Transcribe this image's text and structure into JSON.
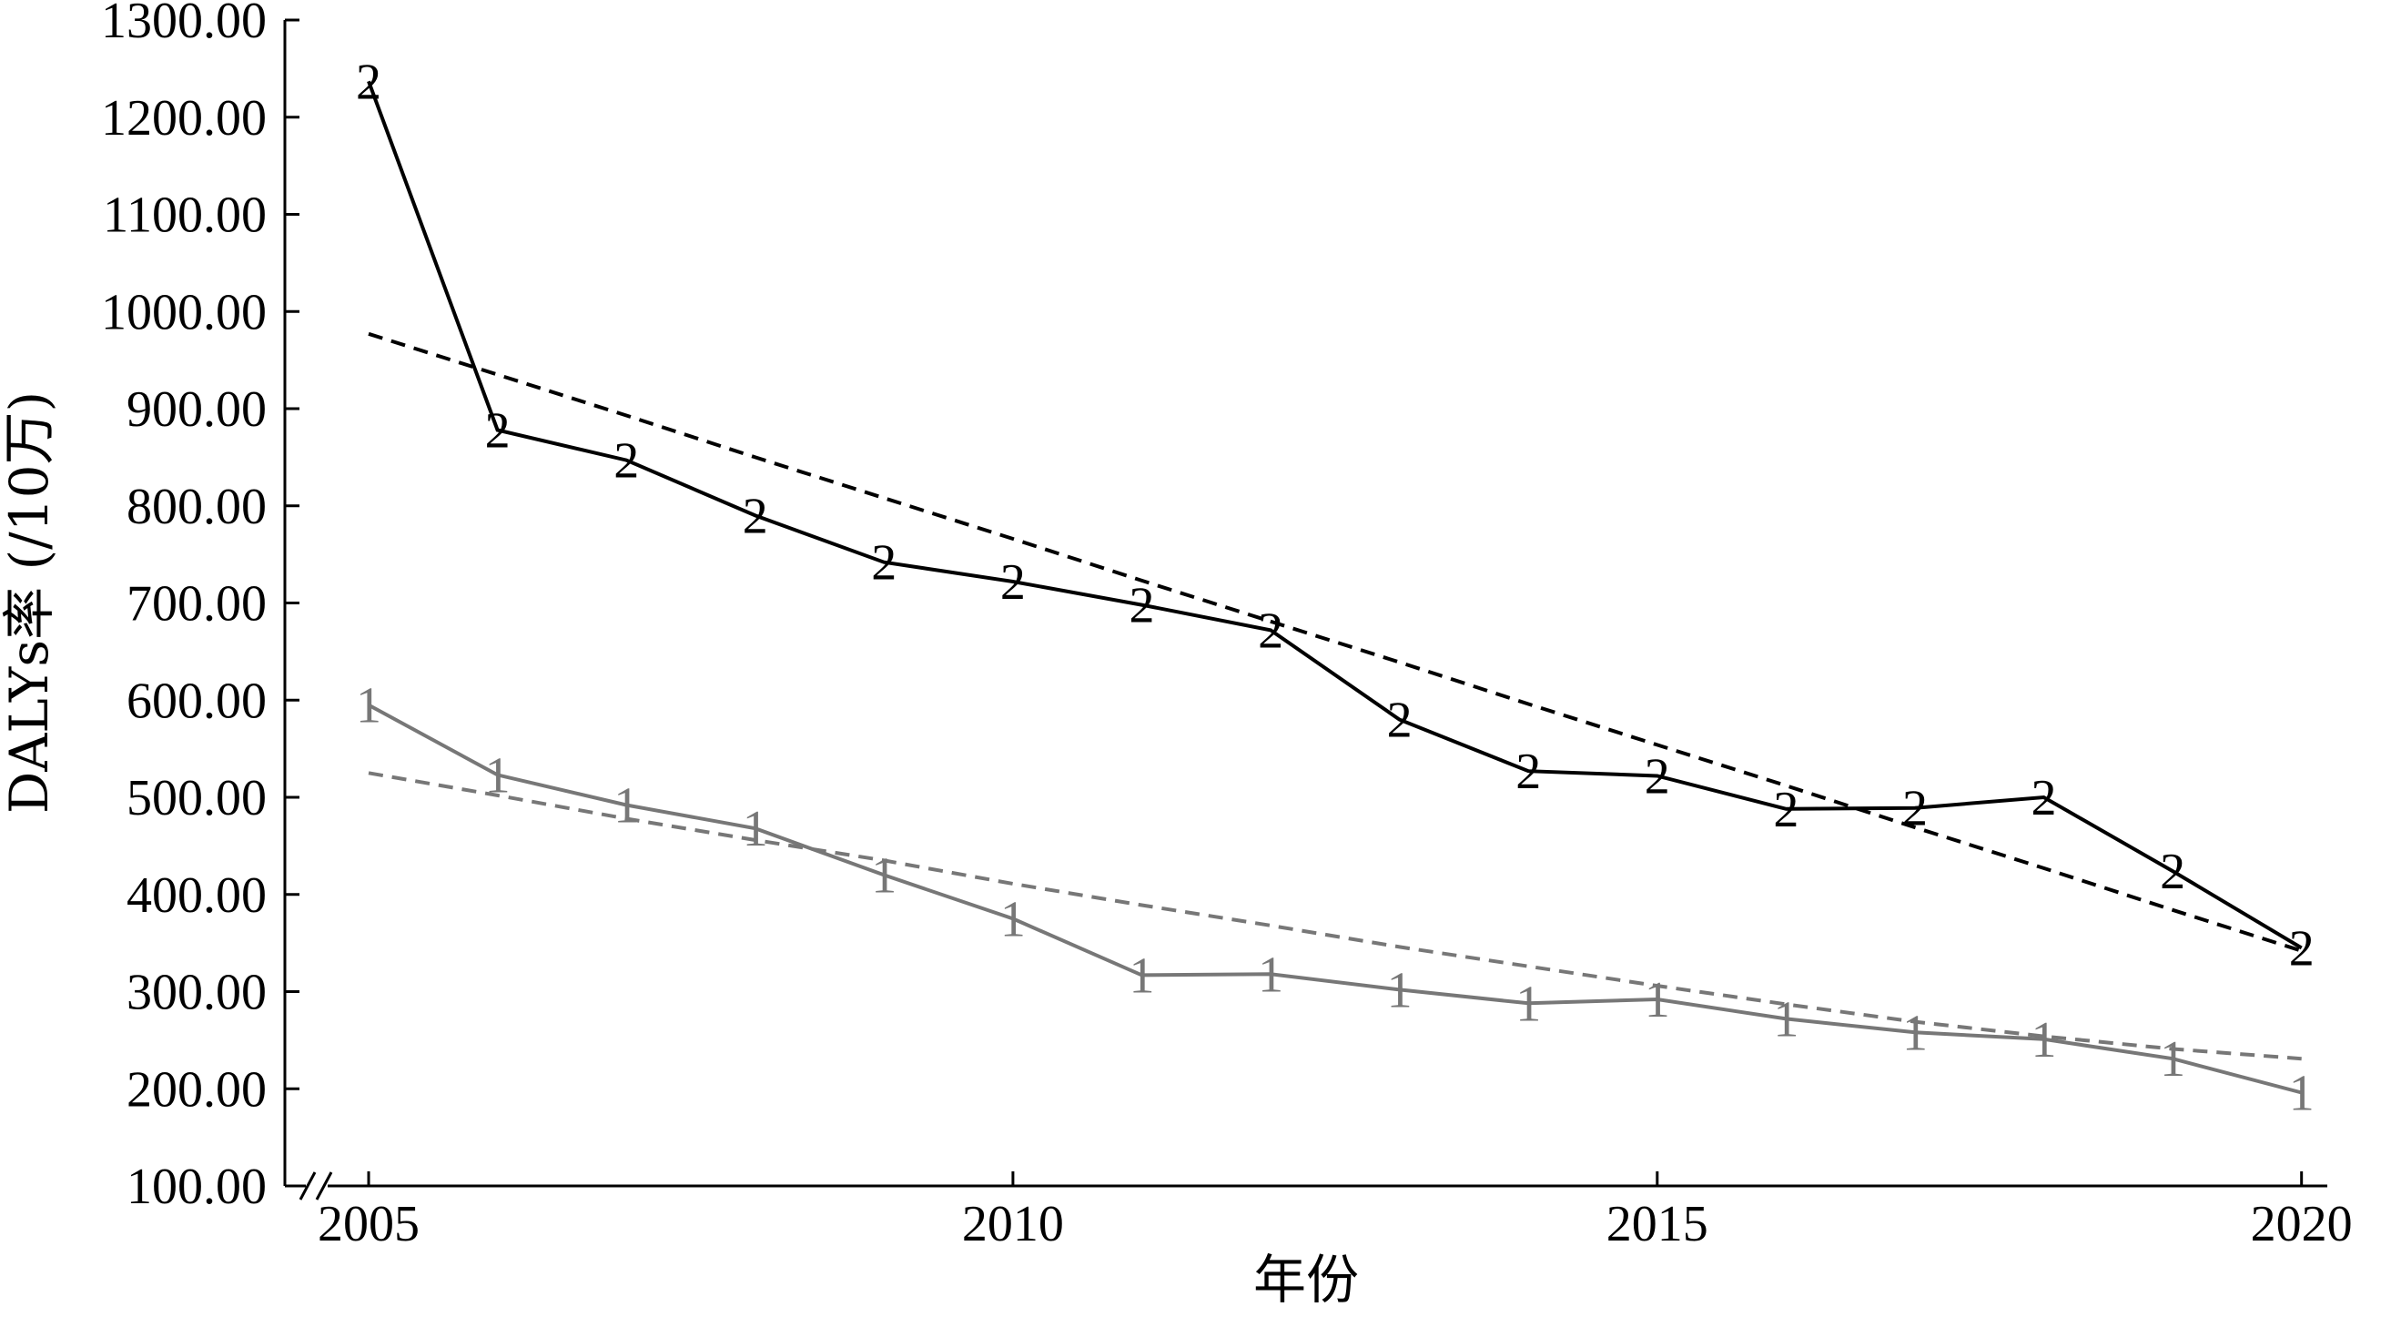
{
  "chart_data": {
    "type": "line",
    "title": "",
    "xlabel": "年份",
    "ylabel": "DALYs率 (/10万)",
    "x": [
      2005,
      2006,
      2007,
      2008,
      2009,
      2010,
      2011,
      2012,
      2013,
      2014,
      2015,
      2016,
      2017,
      2018,
      2019,
      2020
    ],
    "xlim": [
      2004.35,
      2020.2
    ],
    "ylim": [
      100,
      1300
    ],
    "y_axis_break": true,
    "grid": false,
    "legend": "none",
    "x_ticks": [
      {
        "value": 2005,
        "label": "2005"
      },
      {
        "value": 2010,
        "label": "2010"
      },
      {
        "value": 2015,
        "label": "2015"
      },
      {
        "value": 2020,
        "label": "2020"
      }
    ],
    "y_ticks": [
      {
        "value": 100,
        "label": "100.00"
      },
      {
        "value": 200,
        "label": "200.00"
      },
      {
        "value": 300,
        "label": "300.00"
      },
      {
        "value": 400,
        "label": "400.00"
      },
      {
        "value": 500,
        "label": "500.00"
      },
      {
        "value": 600,
        "label": "600.00"
      },
      {
        "value": 700,
        "label": "700.00"
      },
      {
        "value": 800,
        "label": "800.00"
      },
      {
        "value": 900,
        "label": "900.00"
      },
      {
        "value": 1000,
        "label": "1000.00"
      },
      {
        "value": 1100,
        "label": "1100.00"
      },
      {
        "value": 1200,
        "label": "1200.00"
      },
      {
        "value": 1300,
        "label": "1300.00"
      }
    ],
    "series": [
      {
        "marker": "2",
        "color": "#000000",
        "values": [
          1237,
          878,
          847,
          790,
          742,
          722,
          698,
          672,
          580,
          527,
          522,
          488,
          489,
          500,
          424,
          345
        ],
        "trend": [
          977,
          935,
          893,
          850,
          808,
          766,
          723,
          681,
          639,
          596,
          554,
          512,
          469,
          427,
          384,
          342
        ]
      },
      {
        "marker": "1",
        "color": "#777777",
        "values": [
          595,
          523,
          492,
          468,
          420,
          375,
          317,
          318,
          302,
          288,
          292,
          272,
          258,
          251,
          231,
          196
        ],
        "trend": [
          525,
          502,
          478,
          456,
          435,
          411,
          389,
          368,
          346,
          326,
          306,
          287,
          269,
          254,
          241,
          231
        ]
      }
    ]
  }
}
